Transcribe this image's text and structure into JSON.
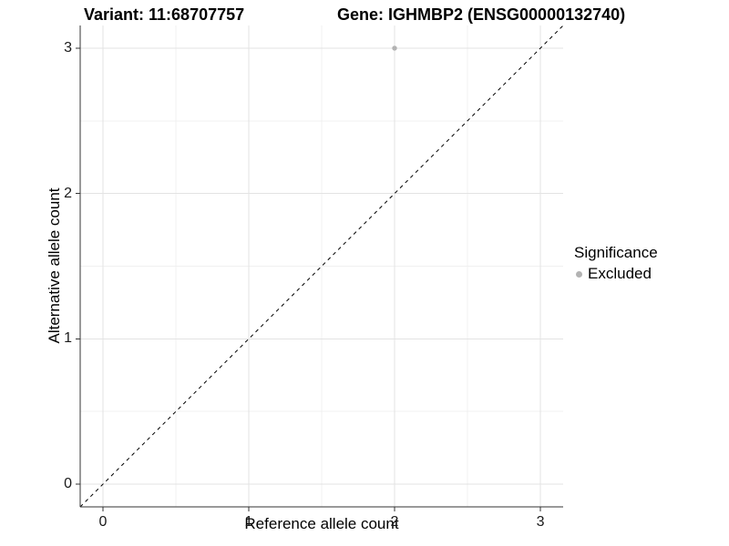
{
  "titles": {
    "variant": "Variant: 11:68707757",
    "gene": "Gene: IGHMBP2 (ENSG00000132740)"
  },
  "axes": {
    "x": {
      "label": "Reference allele count",
      "tick_labels": [
        "0",
        "1",
        "2",
        "3"
      ]
    },
    "y": {
      "label": "Alternative allele count",
      "tick_labels": [
        "0",
        "1",
        "2",
        "3"
      ]
    }
  },
  "legend": {
    "title": "Significance",
    "items": [
      {
        "label": "Excluded",
        "marker": "dot-icon",
        "color": "#b3b3b3"
      }
    ]
  },
  "chart_data": {
    "type": "scatter",
    "title": "Variant: 11:68707757 | Gene: IGHMBP2 (ENSG00000132740)",
    "xlabel": "Reference allele count",
    "ylabel": "Alternative allele count",
    "xlim": [
      -0.156,
      3.156
    ],
    "ylim": [
      -0.156,
      3.156
    ],
    "x_ticks": [
      0,
      1,
      2,
      3
    ],
    "y_ticks": [
      0,
      1,
      2,
      3
    ],
    "minor_ticks": [
      0.5,
      1.5,
      2.5
    ],
    "grid": "major+minor",
    "legend_position": "right",
    "series": [
      {
        "name": "Excluded",
        "color": "#b3b3b3",
        "marker_radius": 2.7,
        "points": [
          [
            2,
            3
          ]
        ]
      }
    ],
    "annotations": [
      {
        "type": "abline",
        "slope": 1,
        "intercept": 0,
        "style": "dashed",
        "color": "#000000"
      }
    ],
    "colors": {
      "background": "#ffffff",
      "major_grid": "#e3e3e3",
      "minor_grid": "#f0f0f0",
      "axis_line": "#333333",
      "tick_mark": "#333333"
    }
  }
}
